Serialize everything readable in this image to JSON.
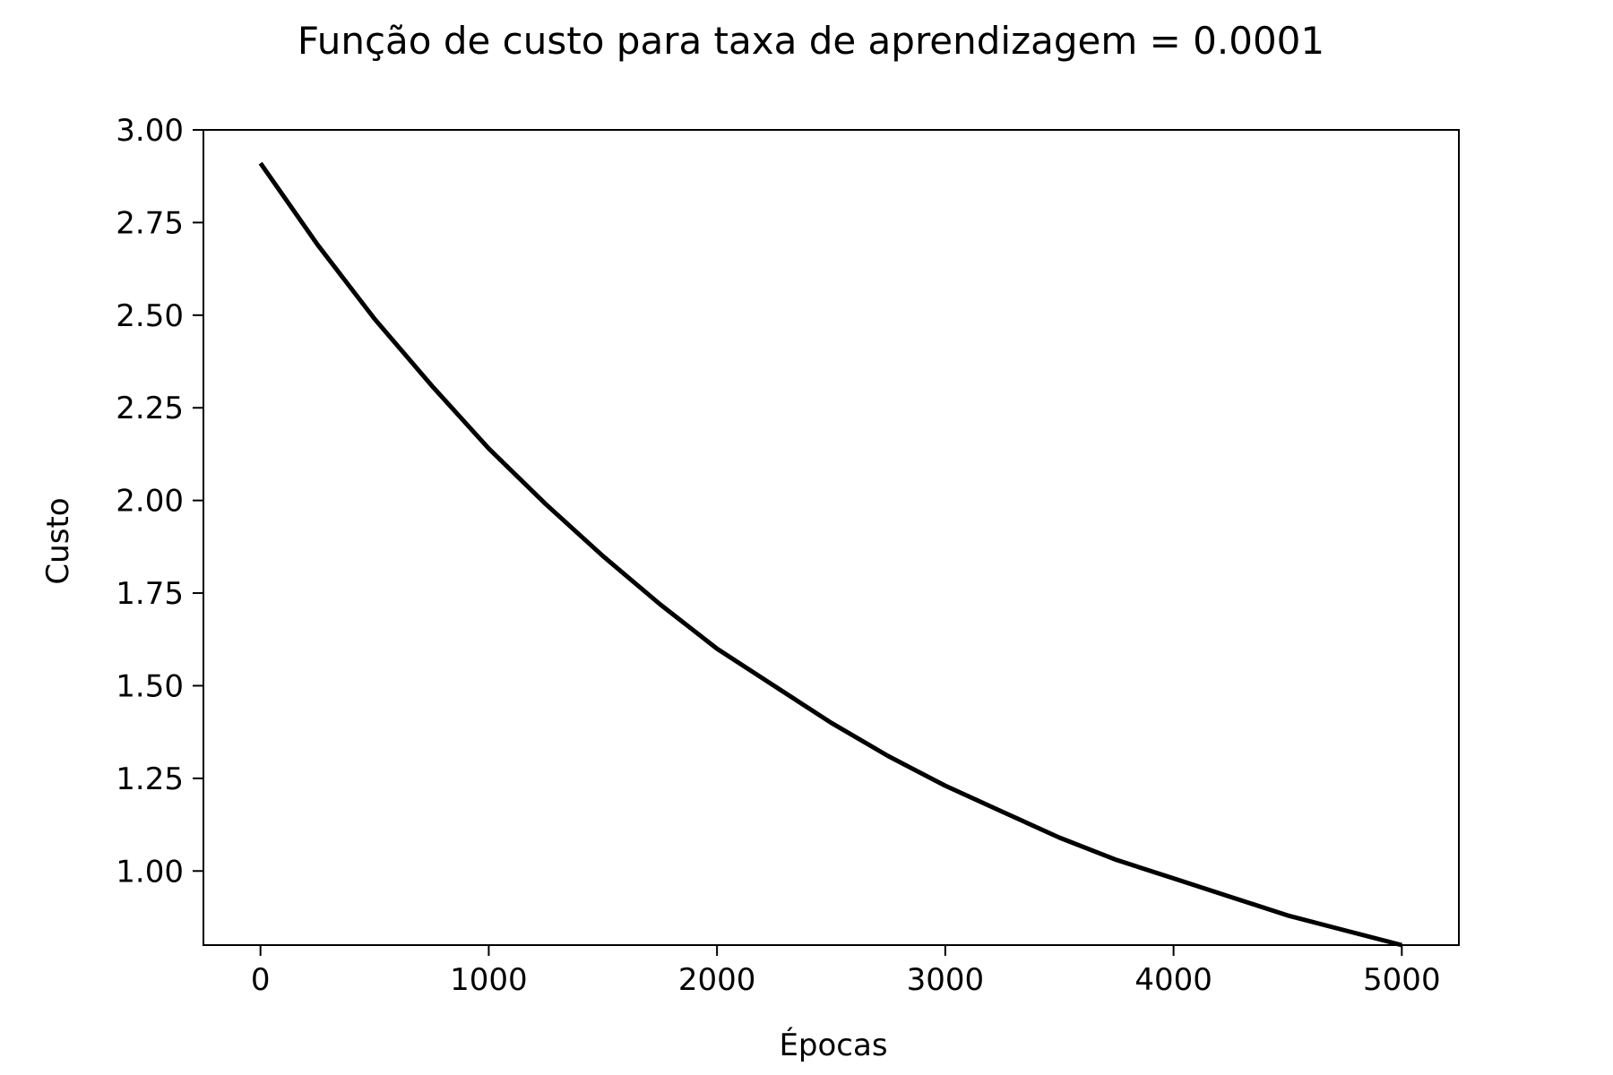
{
  "chart_data": {
    "type": "line",
    "title": "Função de custo para taxa de aprendizagem = 0.0001",
    "xlabel": "Épocas",
    "ylabel": "Custo",
    "xlim": [
      -250,
      5250
    ],
    "ylim": [
      0.8,
      3.0
    ],
    "grid": false,
    "line_color": "#000000",
    "x_ticks": [
      0,
      1000,
      2000,
      3000,
      4000,
      5000
    ],
    "x_tick_labels": [
      "0",
      "1000",
      "2000",
      "3000",
      "4000",
      "5000"
    ],
    "y_ticks": [
      1.0,
      1.25,
      1.5,
      1.75,
      2.0,
      2.25,
      2.5,
      2.75,
      3.0
    ],
    "y_tick_labels": [
      "1.00",
      "1.25",
      "1.50",
      "1.75",
      "2.00",
      "2.25",
      "2.50",
      "2.75",
      "3.00"
    ],
    "series": [
      {
        "x": [
          0,
          250,
          500,
          750,
          1000,
          1250,
          1500,
          1750,
          2000,
          2250,
          2500,
          2750,
          3000,
          3250,
          3500,
          3750,
          4000,
          4250,
          4500,
          4750,
          5000
        ],
        "y": [
          2.91,
          2.69,
          2.49,
          2.31,
          2.14,
          1.99,
          1.85,
          1.72,
          1.6,
          1.5,
          1.4,
          1.31,
          1.23,
          1.16,
          1.09,
          1.03,
          0.98,
          0.93,
          0.88,
          0.84,
          0.8
        ]
      }
    ]
  }
}
